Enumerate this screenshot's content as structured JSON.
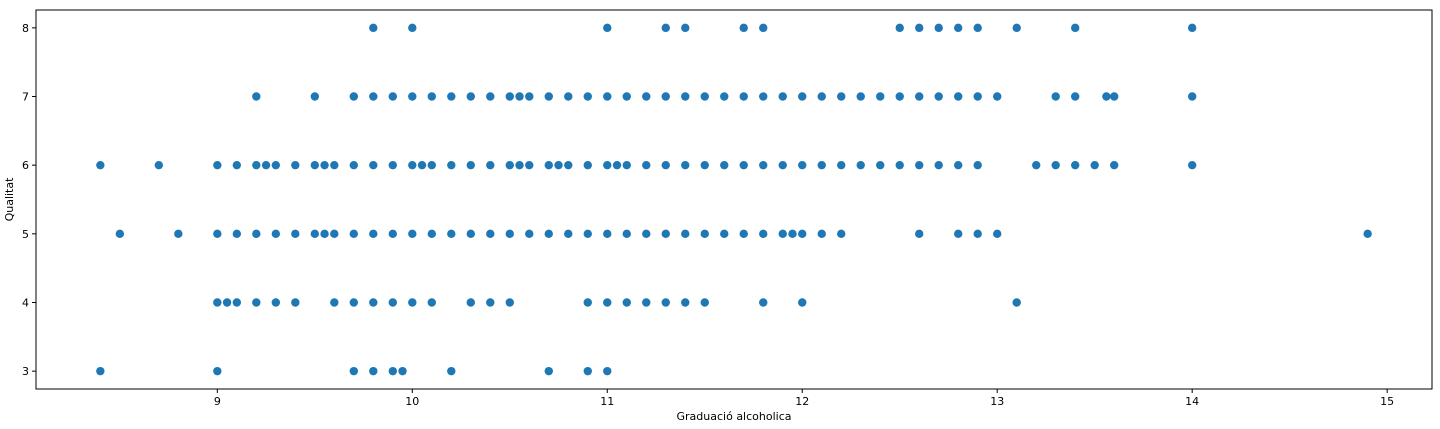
{
  "chart_data": {
    "type": "scatter",
    "title": "",
    "xlabel": "Graduació alcoholica",
    "ylabel": "Qualitat",
    "xlim": [
      8.07,
      15.23
    ],
    "ylim": [
      2.74,
      8.26
    ],
    "xticks": [
      "9",
      "10",
      "11",
      "12",
      "13",
      "14",
      "15"
    ],
    "yticks": [
      "3",
      "4",
      "5",
      "6",
      "7",
      "8"
    ],
    "grid": false,
    "marker_color": "#1f77b4",
    "points": [
      [
        8.4,
        3
      ],
      [
        9.0,
        3
      ],
      [
        9.7,
        3
      ],
      [
        9.8,
        3
      ],
      [
        9.9,
        3
      ],
      [
        9.95,
        3
      ],
      [
        10.2,
        3
      ],
      [
        10.7,
        3
      ],
      [
        10.9,
        3
      ],
      [
        11.0,
        3
      ],
      [
        9.0,
        4
      ],
      [
        9.05,
        4
      ],
      [
        9.1,
        4
      ],
      [
        9.2,
        4
      ],
      [
        9.3,
        4
      ],
      [
        9.4,
        4
      ],
      [
        9.6,
        4
      ],
      [
        9.7,
        4
      ],
      [
        9.8,
        4
      ],
      [
        9.9,
        4
      ],
      [
        10.0,
        4
      ],
      [
        10.1,
        4
      ],
      [
        10.3,
        4
      ],
      [
        10.4,
        4
      ],
      [
        10.5,
        4
      ],
      [
        10.9,
        4
      ],
      [
        11.0,
        4
      ],
      [
        11.1,
        4
      ],
      [
        11.2,
        4
      ],
      [
        11.3,
        4
      ],
      [
        11.4,
        4
      ],
      [
        11.5,
        4
      ],
      [
        11.8,
        4
      ],
      [
        12.0,
        4
      ],
      [
        13.1,
        4
      ],
      [
        8.5,
        5
      ],
      [
        8.8,
        5
      ],
      [
        9.0,
        5
      ],
      [
        9.1,
        5
      ],
      [
        9.2,
        5
      ],
      [
        9.3,
        5
      ],
      [
        9.4,
        5
      ],
      [
        9.5,
        5
      ],
      [
        9.55,
        5
      ],
      [
        9.6,
        5
      ],
      [
        9.7,
        5
      ],
      [
        9.8,
        5
      ],
      [
        9.9,
        5
      ],
      [
        10.0,
        5
      ],
      [
        10.1,
        5
      ],
      [
        10.2,
        5
      ],
      [
        10.3,
        5
      ],
      [
        10.4,
        5
      ],
      [
        10.5,
        5
      ],
      [
        10.6,
        5
      ],
      [
        10.7,
        5
      ],
      [
        10.8,
        5
      ],
      [
        10.9,
        5
      ],
      [
        11.0,
        5
      ],
      [
        11.1,
        5
      ],
      [
        11.2,
        5
      ],
      [
        11.3,
        5
      ],
      [
        11.4,
        5
      ],
      [
        11.5,
        5
      ],
      [
        11.6,
        5
      ],
      [
        11.7,
        5
      ],
      [
        11.8,
        5
      ],
      [
        11.9,
        5
      ],
      [
        11.95,
        5
      ],
      [
        12.0,
        5
      ],
      [
        12.1,
        5
      ],
      [
        12.2,
        5
      ],
      [
        12.6,
        5
      ],
      [
        12.8,
        5
      ],
      [
        12.9,
        5
      ],
      [
        13.0,
        5
      ],
      [
        14.9,
        5
      ],
      [
        8.4,
        6
      ],
      [
        8.7,
        6
      ],
      [
        9.0,
        6
      ],
      [
        9.1,
        6
      ],
      [
        9.2,
        6
      ],
      [
        9.25,
        6
      ],
      [
        9.3,
        6
      ],
      [
        9.4,
        6
      ],
      [
        9.5,
        6
      ],
      [
        9.55,
        6
      ],
      [
        9.6,
        6
      ],
      [
        9.7,
        6
      ],
      [
        9.8,
        6
      ],
      [
        9.9,
        6
      ],
      [
        10.0,
        6
      ],
      [
        10.05,
        6
      ],
      [
        10.1,
        6
      ],
      [
        10.2,
        6
      ],
      [
        10.3,
        6
      ],
      [
        10.4,
        6
      ],
      [
        10.5,
        6
      ],
      [
        10.55,
        6
      ],
      [
        10.6,
        6
      ],
      [
        10.7,
        6
      ],
      [
        10.75,
        6
      ],
      [
        10.8,
        6
      ],
      [
        10.9,
        6
      ],
      [
        11.0,
        6
      ],
      [
        11.05,
        6
      ],
      [
        11.1,
        6
      ],
      [
        11.2,
        6
      ],
      [
        11.3,
        6
      ],
      [
        11.4,
        6
      ],
      [
        11.5,
        6
      ],
      [
        11.6,
        6
      ],
      [
        11.7,
        6
      ],
      [
        11.8,
        6
      ],
      [
        11.9,
        6
      ],
      [
        12.0,
        6
      ],
      [
        12.1,
        6
      ],
      [
        12.2,
        6
      ],
      [
        12.3,
        6
      ],
      [
        12.4,
        6
      ],
      [
        12.5,
        6
      ],
      [
        12.6,
        6
      ],
      [
        12.7,
        6
      ],
      [
        12.8,
        6
      ],
      [
        12.9,
        6
      ],
      [
        13.2,
        6
      ],
      [
        13.3,
        6
      ],
      [
        13.4,
        6
      ],
      [
        13.5,
        6
      ],
      [
        13.6,
        6
      ],
      [
        14.0,
        6
      ],
      [
        9.2,
        7
      ],
      [
        9.5,
        7
      ],
      [
        9.7,
        7
      ],
      [
        9.8,
        7
      ],
      [
        9.9,
        7
      ],
      [
        10.0,
        7
      ],
      [
        10.1,
        7
      ],
      [
        10.2,
        7
      ],
      [
        10.3,
        7
      ],
      [
        10.4,
        7
      ],
      [
        10.5,
        7
      ],
      [
        10.55,
        7
      ],
      [
        10.6,
        7
      ],
      [
        10.7,
        7
      ],
      [
        10.8,
        7
      ],
      [
        10.9,
        7
      ],
      [
        11.0,
        7
      ],
      [
        11.1,
        7
      ],
      [
        11.2,
        7
      ],
      [
        11.3,
        7
      ],
      [
        11.4,
        7
      ],
      [
        11.5,
        7
      ],
      [
        11.6,
        7
      ],
      [
        11.7,
        7
      ],
      [
        11.8,
        7
      ],
      [
        11.9,
        7
      ],
      [
        12.0,
        7
      ],
      [
        12.1,
        7
      ],
      [
        12.2,
        7
      ],
      [
        12.3,
        7
      ],
      [
        12.4,
        7
      ],
      [
        12.5,
        7
      ],
      [
        12.6,
        7
      ],
      [
        12.7,
        7
      ],
      [
        12.8,
        7
      ],
      [
        12.9,
        7
      ],
      [
        13.0,
        7
      ],
      [
        13.3,
        7
      ],
      [
        13.4,
        7
      ],
      [
        13.56,
        7
      ],
      [
        13.6,
        7
      ],
      [
        14.0,
        7
      ],
      [
        9.8,
        8
      ],
      [
        10.0,
        8
      ],
      [
        11.0,
        8
      ],
      [
        11.3,
        8
      ],
      [
        11.4,
        8
      ],
      [
        11.7,
        8
      ],
      [
        11.8,
        8
      ],
      [
        12.5,
        8
      ],
      [
        12.6,
        8
      ],
      [
        12.7,
        8
      ],
      [
        12.8,
        8
      ],
      [
        12.9,
        8
      ],
      [
        13.1,
        8
      ],
      [
        13.4,
        8
      ],
      [
        14.0,
        8
      ]
    ]
  }
}
